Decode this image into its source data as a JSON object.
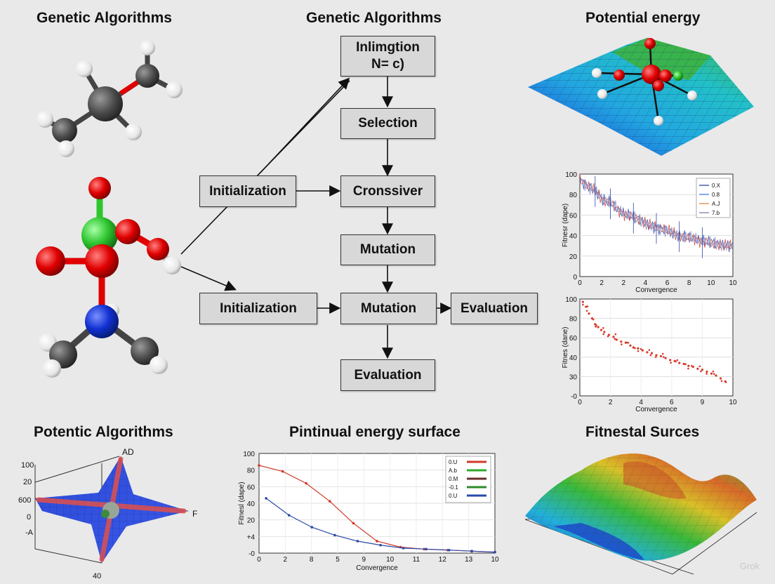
{
  "titles": {
    "top_left": "Genetic Algorithms",
    "top_center": "Genetic Algorithms",
    "top_right": "Potential energy",
    "bottom_left": "Potentic Algorithms",
    "bottom_center": "Pintinual energy surface",
    "bottom_right": "Fitnestal Surces"
  },
  "flow": {
    "box_init_1": "Inlimgtion",
    "box_init_1_line2": "N= c)",
    "selection": "Selection",
    "crossover": "Cronssiver",
    "mutation_1": "Mutation",
    "mutation_2": "Mutation",
    "evaluation_right": "Evaluation",
    "evaluation_bottom": "Evaluation",
    "initialization_upper": "Initialization",
    "initialization_lower": "Initialization"
  },
  "colors": {
    "oxygen": "#e00000",
    "nitrogen": "#1030d0",
    "carbon": "#4a4a4a",
    "hydrogen": "#f4f4f4",
    "chlorine": "#2ec52e",
    "line_red": "#d03a2a",
    "line_blue": "#2a4aa8"
  },
  "chart_data": [
    {
      "type": "line",
      "ylabel": "Fitnesr (dape)",
      "xlabel": "Convergence",
      "x_ticks": [
        "0",
        "2",
        "2",
        "4",
        "6",
        "8",
        "10",
        "10"
      ],
      "y_ticks": [
        "100",
        "80",
        "60",
        "40",
        "20",
        "0"
      ],
      "legend": [
        "0.X",
        "0.8",
        "A.J",
        "7.b"
      ],
      "legend_colors": [
        "#1f3a8a",
        "#2f6fd8",
        "#e07b2a",
        "#6a7aa8"
      ],
      "ylim": [
        0,
        100
      ],
      "xlim": [
        0,
        10
      ],
      "series": [
        {
          "values": [
            95,
            88,
            84,
            75,
            72,
            65,
            60,
            58,
            55,
            50,
            48,
            46,
            43,
            40,
            38,
            37,
            34,
            33,
            32,
            30,
            30
          ]
        }
      ]
    },
    {
      "type": "scatter",
      "ylabel": "Fitnes (dane)",
      "xlabel": "Convergence",
      "x_ticks": [
        "0",
        "2",
        "4",
        "6",
        "9",
        "10"
      ],
      "y_ticks": [
        "100",
        "80",
        "60",
        "40",
        "30",
        "-0"
      ],
      "ylim": [
        0,
        100
      ],
      "xlim": [
        0,
        10
      ],
      "points": [
        [
          0.2,
          97
        ],
        [
          0.4,
          92
        ],
        [
          0.6,
          85
        ],
        [
          0.8,
          80
        ],
        [
          1,
          74
        ],
        [
          1.2,
          71
        ],
        [
          1.4,
          68
        ],
        [
          1.6,
          66
        ],
        [
          1.9,
          63
        ],
        [
          2.2,
          61
        ],
        [
          2.4,
          58
        ],
        [
          2.7,
          56
        ],
        [
          3,
          55
        ],
        [
          3.3,
          52
        ],
        [
          3.5,
          50
        ],
        [
          3.8,
          49
        ],
        [
          4.1,
          47
        ],
        [
          4.4,
          45
        ],
        [
          4.7,
          44
        ],
        [
          5,
          42
        ],
        [
          5.3,
          41
        ],
        [
          5.6,
          39
        ],
        [
          5.9,
          37
        ],
        [
          6.2,
          36
        ],
        [
          6.5,
          34
        ],
        [
          6.8,
          33
        ],
        [
          7.1,
          31
        ],
        [
          7.4,
          30
        ],
        [
          7.7,
          28
        ],
        [
          8,
          27
        ],
        [
          8.3,
          25
        ],
        [
          8.6,
          23
        ],
        [
          8.9,
          21
        ],
        [
          9.2,
          18
        ],
        [
          9.5,
          15
        ]
      ]
    },
    {
      "type": "line",
      "ylabel": "Fitnesl (dape)",
      "xlabel": "Convergence",
      "x_ticks": [
        "0",
        "2",
        "8",
        "5",
        "9",
        "10",
        "11",
        "12",
        "13",
        "10"
      ],
      "y_ticks": [
        "100",
        "80",
        "60",
        "40",
        "20",
        "+4",
        "-0"
      ],
      "legend": [
        "0.U",
        "A.b",
        "0.M",
        "-0.1",
        "0.U"
      ],
      "legend_colors": [
        "#d03a2a",
        "#2eaa2e",
        "#6a2e2e",
        "#2e8a2e",
        "#2a4aa8"
      ],
      "ylim": [
        0,
        100
      ],
      "series": [
        {
          "name": "0.U",
          "values": [
            88,
            82,
            70,
            52,
            30,
            12,
            6,
            4,
            3,
            2,
            1
          ]
        },
        {
          "name": "0.U",
          "values": [
            55,
            38,
            26,
            18,
            12,
            8,
            5,
            4,
            3,
            2,
            1
          ]
        }
      ]
    },
    {
      "type": "area",
      "axis_labels": [
        "100",
        "20",
        "600",
        "0",
        "-A",
        "AD",
        "F",
        "40"
      ]
    }
  ],
  "watermark": "Grok"
}
